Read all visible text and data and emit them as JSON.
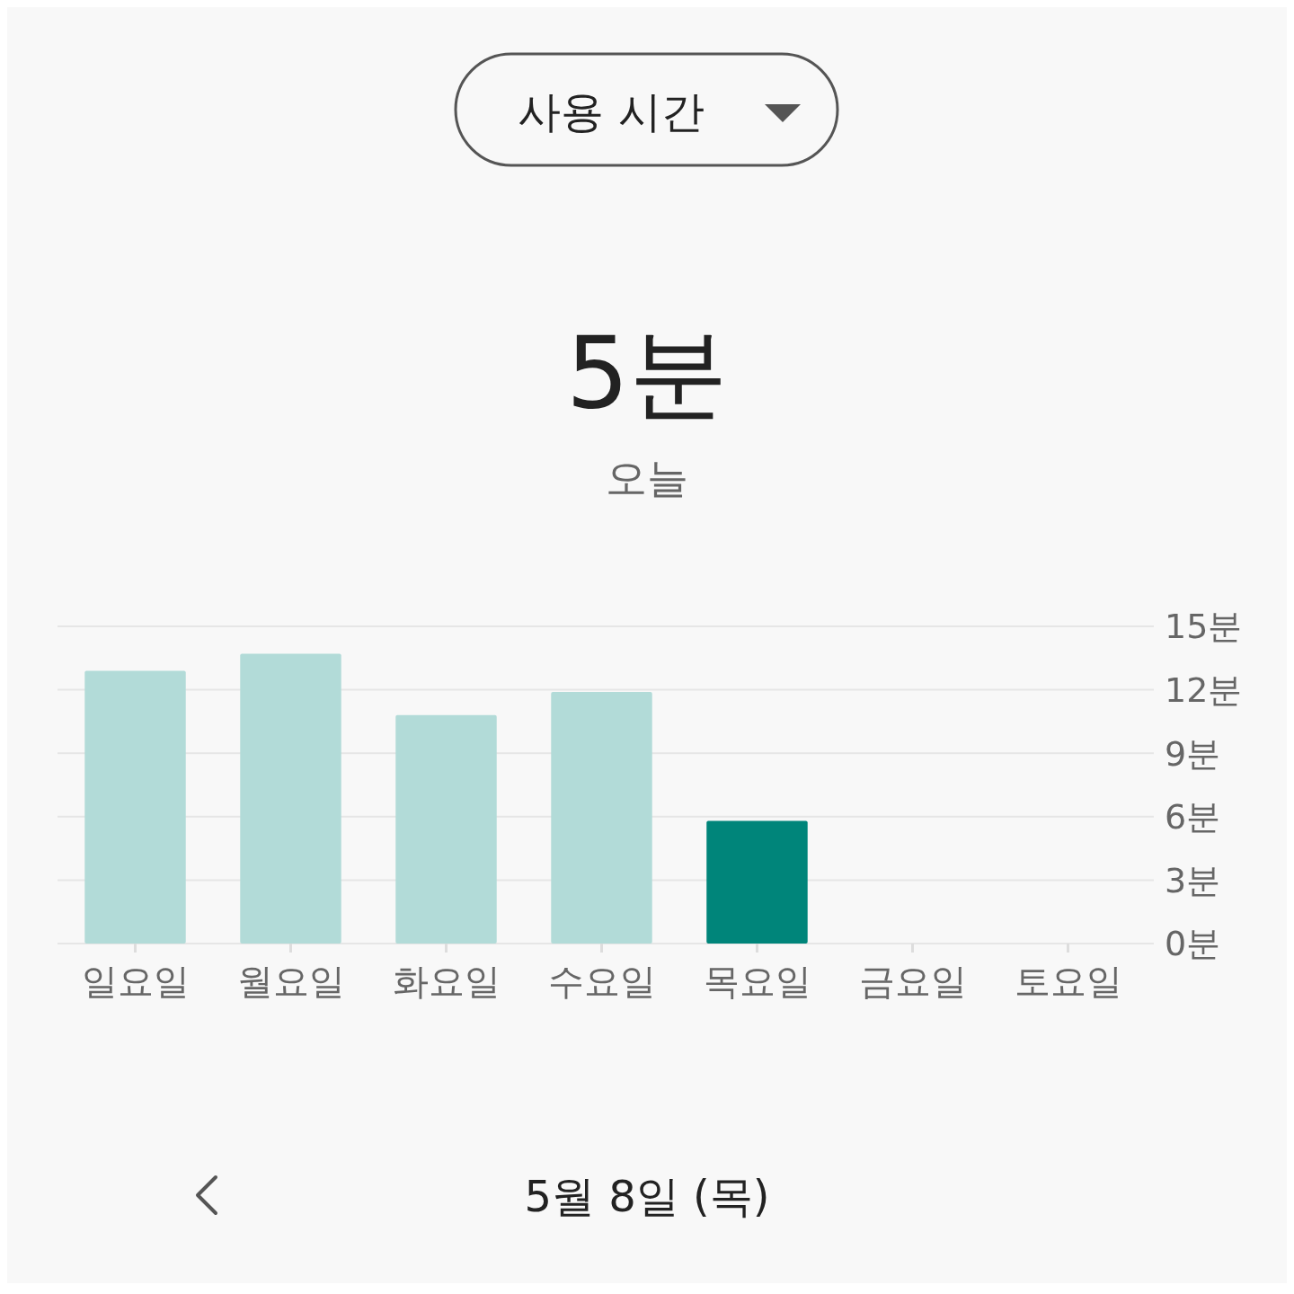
{
  "chart_data": {
    "type": "bar",
    "title": "5분",
    "subtitle": "오늘",
    "categories": [
      "일요일",
      "월요일",
      "화요일",
      "수요일",
      "목요일",
      "금요일",
      "토요일"
    ],
    "values": [
      12.9,
      13.7,
      10.8,
      11.9,
      5.8,
      0,
      0
    ],
    "colors": [
      "#b2dbd8",
      "#b2dbd8",
      "#b2dbd8",
      "#b2dbd8",
      "#00857a",
      "#b2dbd8",
      "#b2dbd8"
    ],
    "ylim": [
      0,
      15
    ],
    "yticks": [
      {
        "value": 0,
        "label": "0분"
      },
      {
        "value": 3,
        "label": "3분"
      },
      {
        "value": 6,
        "label": "6분"
      },
      {
        "value": 9,
        "label": "9분"
      },
      {
        "value": 12,
        "label": "12분"
      },
      {
        "value": 15,
        "label": "15분"
      }
    ],
    "grid": "y",
    "annotations": [
      "사용 시간",
      "5월 8일 (목)"
    ]
  }
}
